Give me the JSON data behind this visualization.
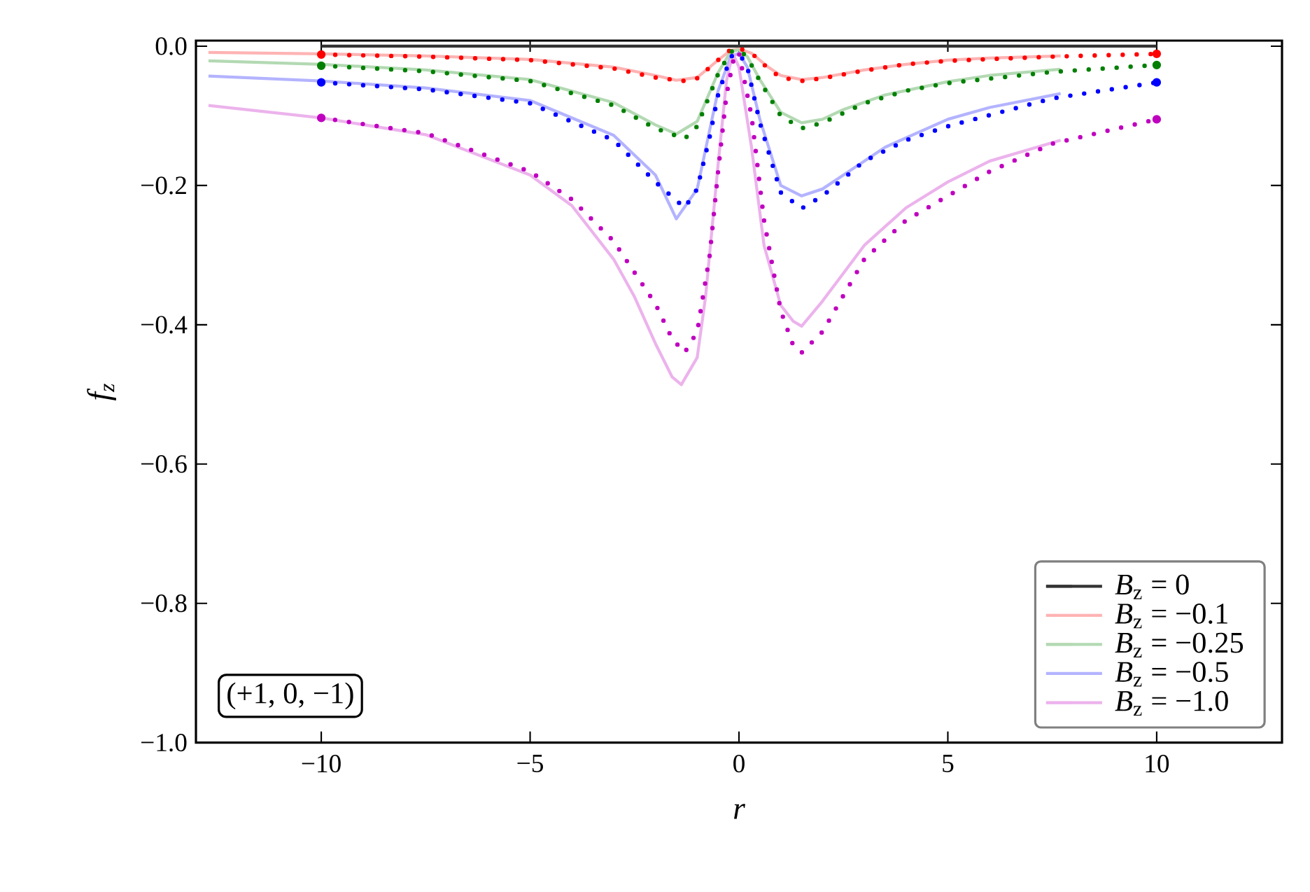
{
  "chart_data": {
    "type": "line",
    "xlabel": "r",
    "ylabel": "f$_{z}$",
    "xlim": [
      -13,
      13
    ],
    "ylim": [
      -1.0,
      0.008
    ],
    "xticks": [
      {
        "value": -10,
        "label": "−10"
      },
      {
        "value": -5,
        "label": "−5"
      },
      0,
      5,
      10
    ],
    "yticks": [
      {
        "value": -1.0,
        "label": "−1.0"
      },
      {
        "value": -0.8,
        "label": "−0.8"
      },
      {
        "value": -0.6,
        "label": "−0.6"
      },
      {
        "value": -0.4,
        "label": "−0.4"
      },
      {
        "value": -0.2,
        "label": "−0.2"
      },
      {
        "value": 0.0,
        "label": "0.0"
      }
    ],
    "grid": false,
    "legend": "bottom right",
    "marker": "none",
    "annotations": [
      "(+1, 0, −1)"
    ],
    "series": [
      {
        "name": "*B*$_{z}$ = 0",
        "color": "#333333",
        "line_style": "solid",
        "x": [
          -10,
          10
        ],
        "values": [
          0,
          0
        ]
      },
      {
        "name": "*B*$_{z}$ = −0.1",
        "color": "#ffb3b3",
        "line_style": "solid",
        "x": [
          -12.7,
          -10,
          -7.5,
          -5,
          -3,
          -2,
          -1.5,
          -1,
          -0.5,
          -0.2,
          0,
          0.3,
          0.7,
          1,
          1.5,
          2,
          3,
          4,
          5,
          6,
          7.7
        ],
        "values": [
          -0.009,
          -0.011,
          -0.014,
          -0.019,
          -0.03,
          -0.042,
          -0.049,
          -0.045,
          -0.02,
          -0.006,
          -0.004,
          -0.01,
          -0.03,
          -0.042,
          -0.048,
          -0.045,
          -0.034,
          -0.026,
          -0.02,
          -0.017,
          -0.014
        ]
      },
      {
        "name": "*B*$_{z}$ = −0.25",
        "color": "#b3d9b3",
        "line_style": "solid",
        "x": [
          -12.7,
          -10,
          -7.5,
          -5,
          -3,
          -2,
          -1.5,
          -1,
          -0.5,
          -0.2,
          0,
          0.2,
          0.5,
          1,
          1.5,
          2,
          2.5,
          3.5,
          5,
          6,
          7.7
        ],
        "values": [
          -0.021,
          -0.026,
          -0.034,
          -0.048,
          -0.081,
          -0.113,
          -0.126,
          -0.108,
          -0.038,
          -0.008,
          -0.005,
          -0.015,
          -0.048,
          -0.095,
          -0.11,
          -0.105,
          -0.091,
          -0.07,
          -0.051,
          -0.042,
          -0.033
        ]
      },
      {
        "name": "*B*$_{z}$ = −0.5",
        "color": "#b3b3ff",
        "line_style": "solid",
        "x": [
          -12.7,
          -10,
          -7.5,
          -5,
          -3,
          -2,
          -1.5,
          -1,
          -0.7,
          -0.5,
          -0.2,
          0,
          0.2,
          0.5,
          1,
          1.5,
          2,
          2.5,
          3.5,
          5,
          6,
          7.7
        ],
        "values": [
          -0.043,
          -0.05,
          -0.06,
          -0.078,
          -0.128,
          -0.185,
          -0.248,
          -0.205,
          -0.12,
          -0.064,
          -0.015,
          -0.01,
          -0.03,
          -0.105,
          -0.2,
          -0.215,
          -0.205,
          -0.185,
          -0.145,
          -0.105,
          -0.088,
          -0.068
        ]
      },
      {
        "name": "*B*$_{z}$ = −1.0",
        "color": "#ecb3ec",
        "line_style": "solid",
        "x": [
          -12.7,
          -10,
          -7.5,
          -5,
          -4,
          -3,
          -2.5,
          -2,
          -1.6,
          -1.38,
          -1,
          -0.8,
          -0.5,
          -0.3,
          -0.15,
          0,
          0.3,
          0.6,
          1,
          1.3,
          1.5,
          2,
          3,
          4,
          5,
          6,
          7.7
        ],
        "values": [
          -0.085,
          -0.103,
          -0.127,
          -0.185,
          -0.229,
          -0.306,
          -0.36,
          -0.427,
          -0.475,
          -0.486,
          -0.447,
          -0.36,
          -0.17,
          -0.05,
          -0.01,
          -0.03,
          -0.145,
          -0.286,
          -0.372,
          -0.395,
          -0.402,
          -0.366,
          -0.286,
          -0.232,
          -0.195,
          -0.165,
          -0.135
        ]
      },
      {
        "color": "#ff0000",
        "line_style": "dotted",
        "x": [
          -10,
          -7.5,
          -5,
          -3,
          -2,
          -1.3,
          -1,
          -0.5,
          -0.2,
          0,
          0.3,
          0.7,
          1,
          1.5,
          2,
          3,
          4,
          5,
          7.5,
          10
        ],
        "values": [
          -0.012,
          -0.015,
          -0.02,
          -0.032,
          -0.045,
          -0.05,
          -0.046,
          -0.02,
          -0.005,
          -0.003,
          -0.01,
          -0.032,
          -0.045,
          -0.05,
          -0.046,
          -0.035,
          -0.026,
          -0.021,
          -0.015,
          -0.011
        ]
      },
      {
        "color": "#008000",
        "line_style": "dotted",
        "x": [
          -10,
          -7.5,
          -5,
          -3,
          -2,
          -1.3,
          -1,
          -0.5,
          -0.2,
          0,
          0.2,
          0.5,
          1,
          1.5,
          2,
          3,
          4,
          5,
          7.5,
          10
        ],
        "values": [
          -0.028,
          -0.036,
          -0.05,
          -0.085,
          -0.118,
          -0.133,
          -0.115,
          -0.04,
          -0.008,
          -0.005,
          -0.016,
          -0.05,
          -0.1,
          -0.118,
          -0.11,
          -0.082,
          -0.064,
          -0.053,
          -0.037,
          -0.027
        ]
      },
      {
        "color": "#0000ff",
        "line_style": "dotted",
        "x": [
          -10,
          -7.5,
          -5,
          -3,
          -2,
          -1.3,
          -1,
          -0.7,
          -0.5,
          -0.2,
          0,
          0.2,
          0.5,
          1,
          1.5,
          2,
          3,
          4,
          5,
          7.5,
          10
        ],
        "values": [
          -0.052,
          -0.062,
          -0.082,
          -0.135,
          -0.195,
          -0.232,
          -0.205,
          -0.13,
          -0.07,
          -0.015,
          -0.01,
          -0.03,
          -0.11,
          -0.21,
          -0.233,
          -0.215,
          -0.165,
          -0.135,
          -0.115,
          -0.075,
          -0.052
        ]
      },
      {
        "color": "#bf00bf",
        "line_style": "dotted",
        "x": [
          -10,
          -7.5,
          -5,
          -4,
          -3,
          -2.5,
          -2,
          -1.6,
          -1.3,
          -1,
          -0.7,
          -0.5,
          -0.3,
          -0.1,
          0,
          0.3,
          0.6,
          1,
          1.3,
          1.5,
          2,
          3,
          4,
          5,
          6,
          7.5,
          10
        ],
        "values": [
          -0.103,
          -0.125,
          -0.18,
          -0.22,
          -0.28,
          -0.325,
          -0.37,
          -0.42,
          -0.44,
          -0.41,
          -0.3,
          -0.18,
          -0.07,
          -0.01,
          -0.01,
          -0.1,
          -0.25,
          -0.38,
          -0.43,
          -0.44,
          -0.41,
          -0.306,
          -0.25,
          -0.215,
          -0.18,
          -0.14,
          -0.105
        ]
      }
    ]
  }
}
